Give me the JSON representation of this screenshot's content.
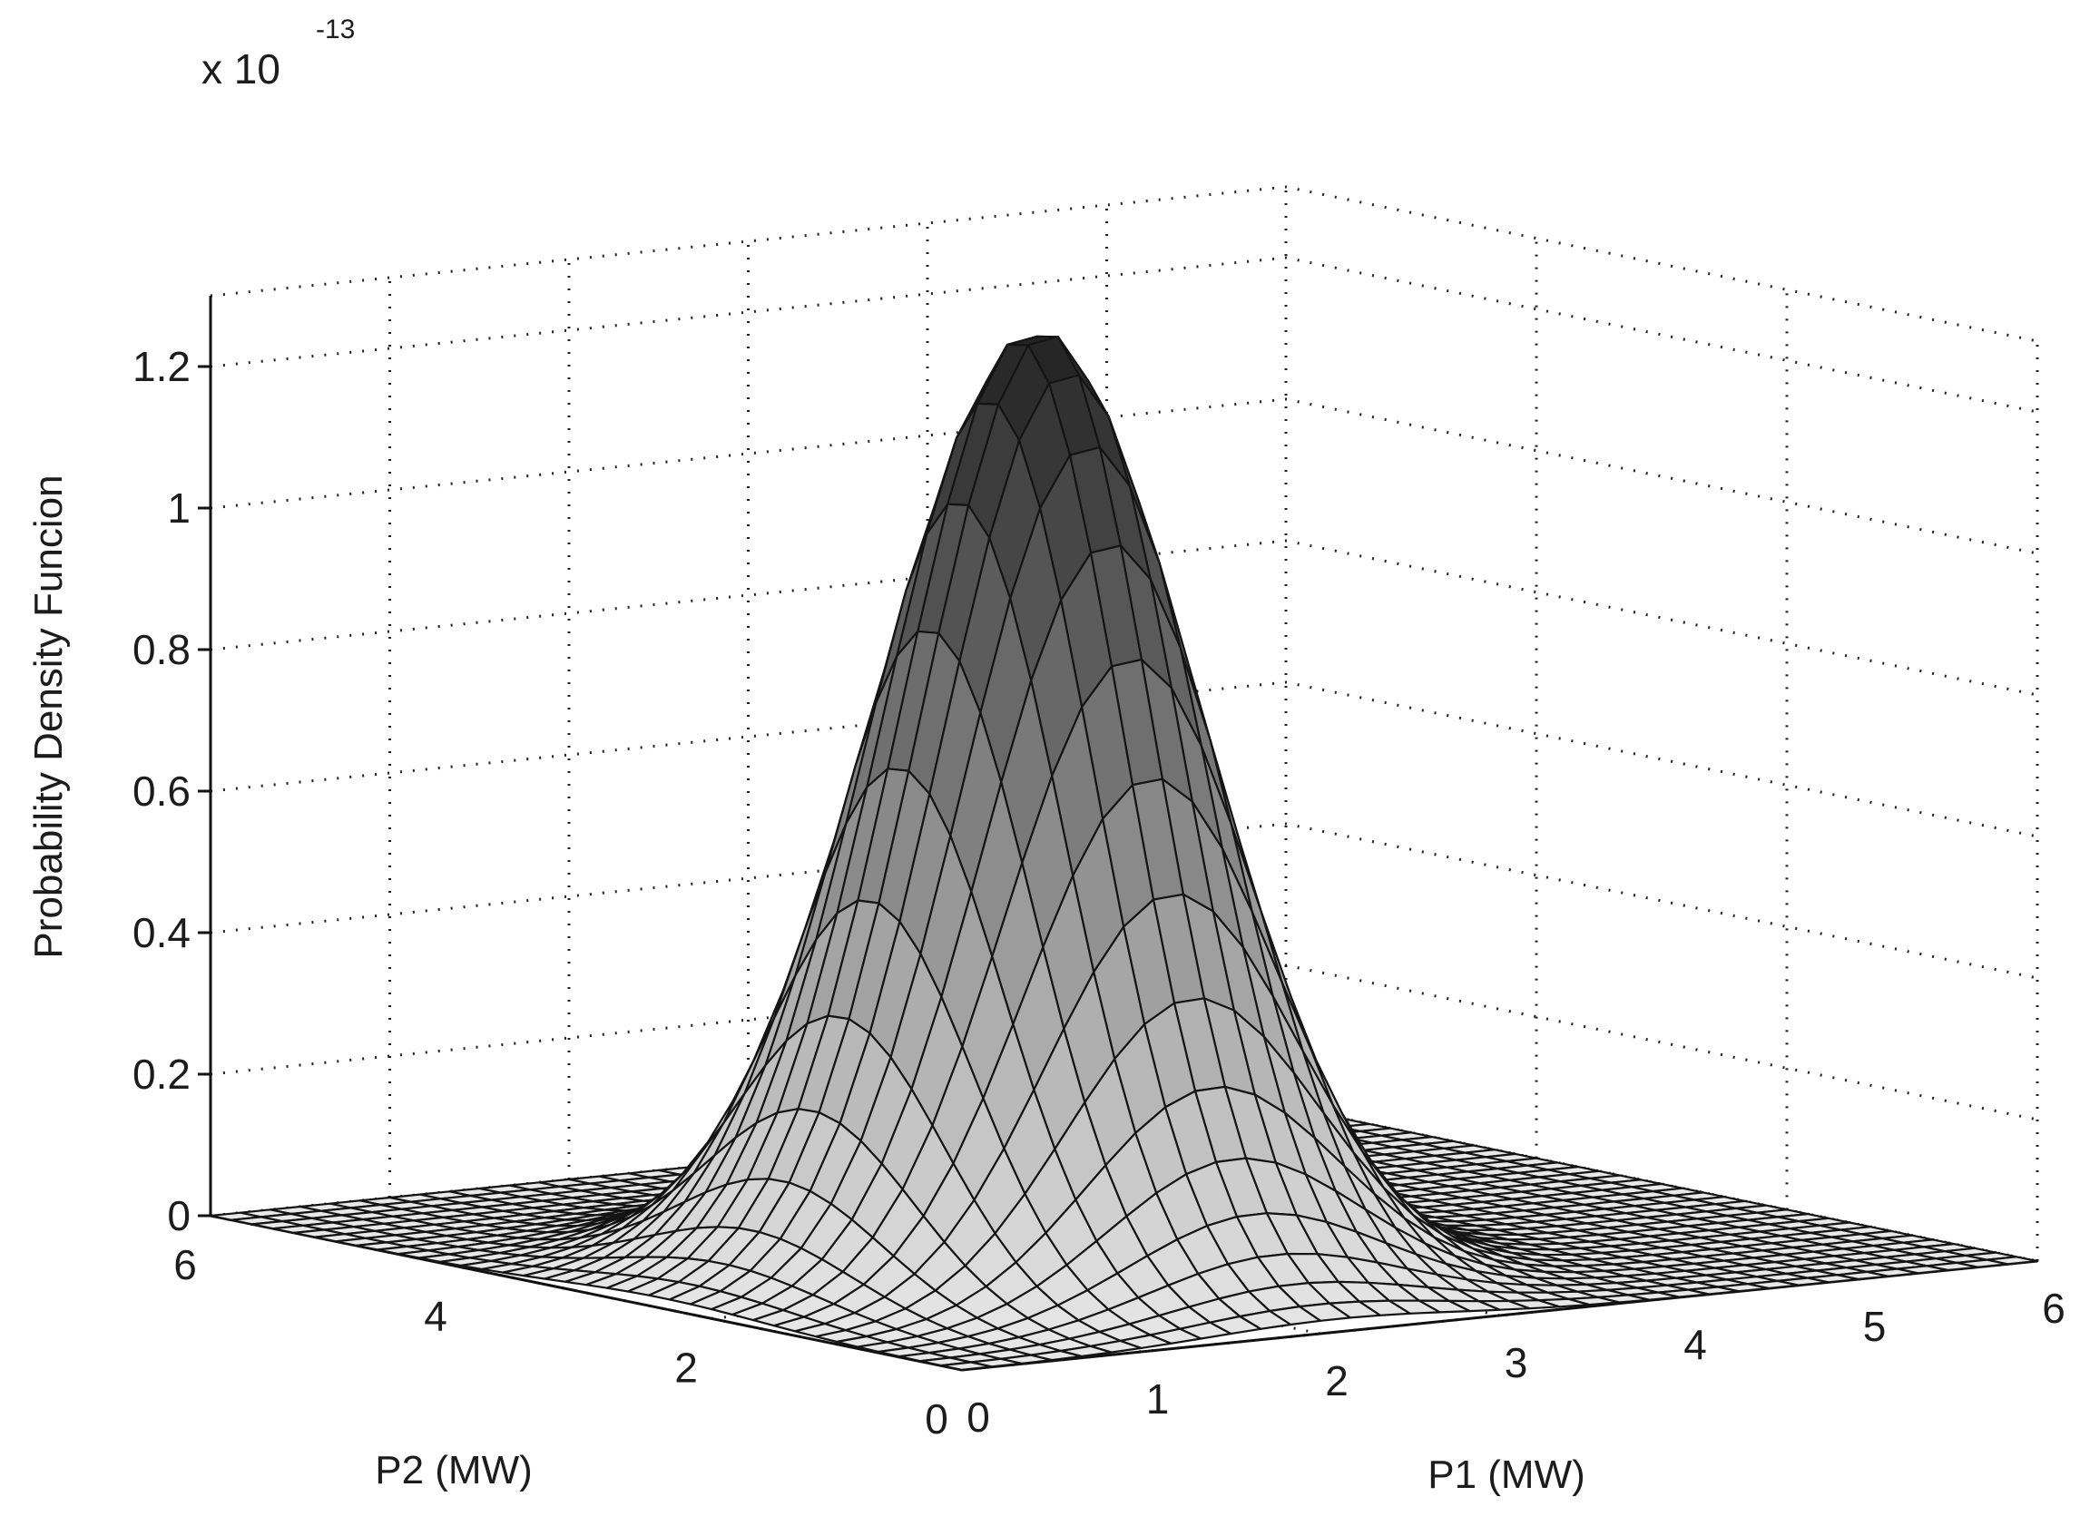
{
  "chart_data": {
    "type": "surface",
    "title": "",
    "x_axis": {
      "label": "P1 (MW)",
      "range": [
        0,
        6
      ],
      "ticks": [
        "0",
        "1",
        "2",
        "3",
        "4",
        "5",
        "6"
      ]
    },
    "y_axis": {
      "label": "P2 (MW)",
      "range": [
        0,
        6
      ],
      "ticks": [
        "0",
        "2",
        "4",
        "6"
      ]
    },
    "z_axis": {
      "label": "Probability Density Funcion",
      "range": [
        0,
        1.3
      ],
      "ticks": [
        "0",
        "0.2",
        "0.4",
        "0.6",
        "0.8",
        "1",
        "1.2"
      ],
      "multiplier": "x 10",
      "multiplier_exponent": "-13"
    },
    "surface": {
      "shape": "single peak",
      "peak": {
        "x": 2.1,
        "y": 2.4,
        "z": 1.33
      },
      "grid_resolution": 36
    },
    "grid": true,
    "colormap": "gray"
  }
}
